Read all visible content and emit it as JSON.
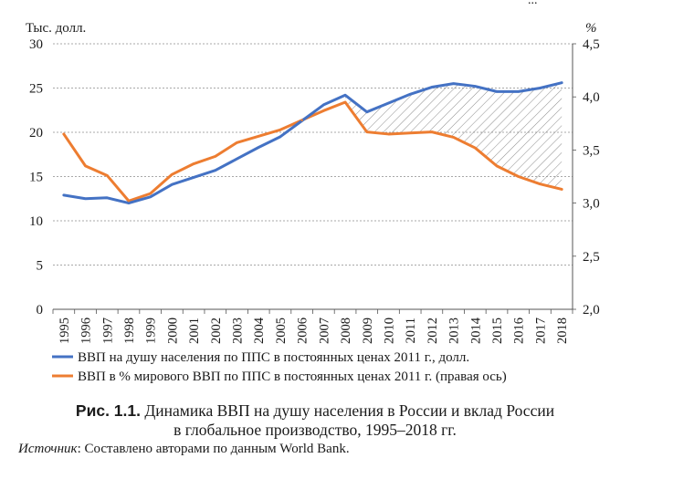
{
  "header_fragment": "...",
  "chart_data": {
    "type": "line",
    "years": [
      "1995",
      "1996",
      "1997",
      "1998",
      "1999",
      "2000",
      "2001",
      "2002",
      "2003",
      "2004",
      "2005",
      "2006",
      "2007",
      "2008",
      "2009",
      "2010",
      "2011",
      "2012",
      "2013",
      "2014",
      "2015",
      "2016",
      "2017",
      "2018"
    ],
    "left_axis": {
      "label": "Тыс. долл.",
      "min": 0,
      "max": 30,
      "ticks": [
        "0",
        "5",
        "10",
        "15",
        "20",
        "25",
        "30"
      ]
    },
    "right_axis": {
      "label": "%",
      "min": 2.0,
      "max": 4.5,
      "ticks": [
        "2,0",
        "2,5",
        "3,0",
        "3,5",
        "4,0",
        "4,5"
      ]
    },
    "grid": "horizontal dashed",
    "hatched_region": {
      "from_year": "2008",
      "to_year": "2018",
      "between": "both series"
    },
    "series": [
      {
        "name": "ВВП на душу населения по ППС в постоянных ценах 2011 г., долл.",
        "axis": "left",
        "color": "#4472c4",
        "values": [
          12.9,
          12.5,
          12.6,
          12.0,
          12.7,
          14.1,
          14.9,
          15.7,
          17.0,
          18.3,
          19.5,
          21.3,
          23.1,
          24.2,
          22.3,
          23.3,
          24.3,
          25.1,
          25.5,
          25.2,
          24.6,
          24.6,
          25.0,
          25.6
        ]
      },
      {
        "name": "ВВП в % мирового ВВП по ППС в постоянных ценах 2011 г. (правая ось)",
        "axis": "right",
        "color": "#ed7d31",
        "values": [
          3.65,
          3.35,
          3.26,
          3.02,
          3.09,
          3.27,
          3.37,
          3.44,
          3.57,
          3.63,
          3.69,
          3.78,
          3.87,
          3.95,
          3.67,
          3.65,
          3.66,
          3.67,
          3.62,
          3.52,
          3.35,
          3.25,
          3.18,
          3.13
        ]
      }
    ]
  },
  "caption": {
    "label": "Рис. 1.1.",
    "text_line1": " Динамика ВВП на душу населения в России и вклад России",
    "text_line2": "в глобальное производство, 1995–2018 гг."
  },
  "source": {
    "label": "Источник",
    "text": ": Составлено авторами по данным World Bank."
  }
}
